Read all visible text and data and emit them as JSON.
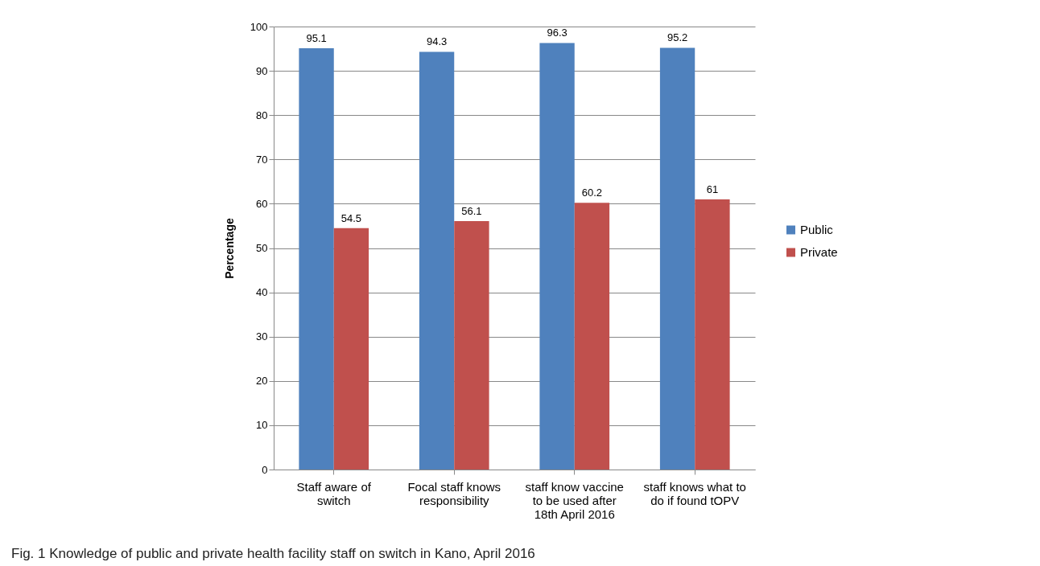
{
  "chart_data": {
    "type": "bar",
    "ylabel": "Percentage",
    "categories": [
      "Staff aware of switch",
      "Focal staff knows responsibility",
      "staff know vaccine to be used after 18th April 2016",
      "staff knows what to do if found tOPV"
    ],
    "series": [
      {
        "name": "Public",
        "color": "#4f81bd",
        "values": [
          95.1,
          94.3,
          96.3,
          95.2
        ]
      },
      {
        "name": "Private",
        "color": "#c0504d",
        "values": [
          54.5,
          56.1,
          60.2,
          61
        ]
      }
    ],
    "ylim": [
      0,
      100
    ],
    "yticks": [
      0,
      10,
      20,
      30,
      40,
      50,
      60,
      70,
      80,
      90,
      100
    ],
    "grid": "y",
    "legend": "right",
    "data_labels": true,
    "annotations": [
      "Fig. 1 Knowledge of public and private health facility staff on switch in Kano, April 2016"
    ]
  }
}
